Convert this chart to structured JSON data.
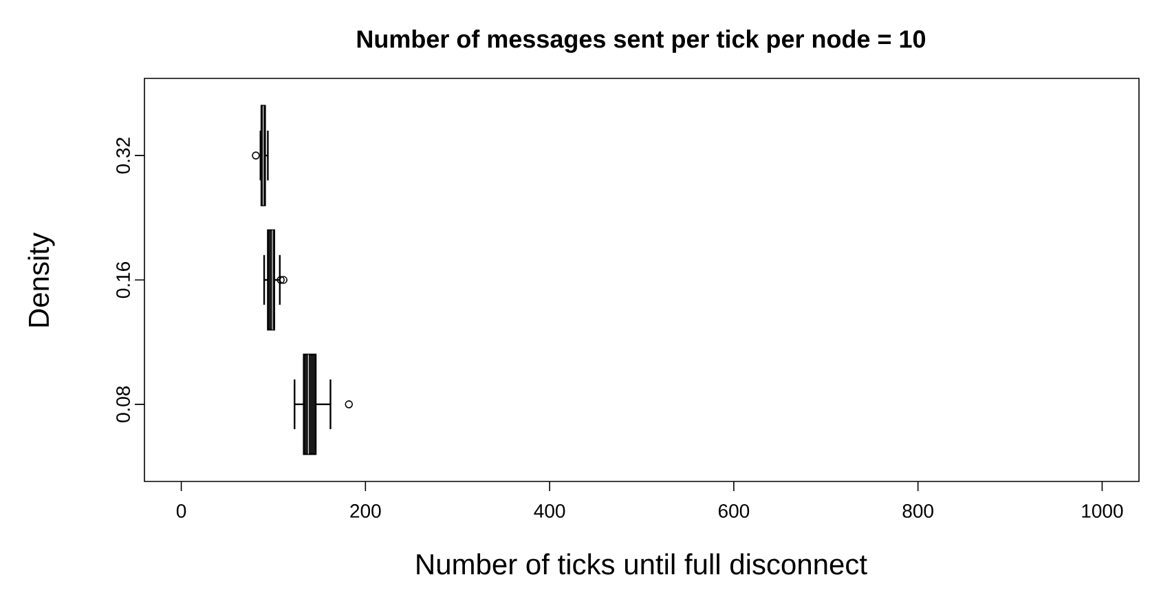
{
  "chart_data": {
    "type": "box",
    "orientation": "horizontal",
    "title": "Number of messages sent per tick per node = 10",
    "xlabel": "Number of ticks until full disconnect",
    "ylabel": "Density",
    "categories": [
      "0.32",
      "0.16",
      "0.08"
    ],
    "color": "#1a1a1a",
    "marker": "circle",
    "boxes": [
      {
        "low": 86,
        "q1": 87,
        "median": 89,
        "q3": 91,
        "high": 94,
        "outliers": [
          81
        ]
      },
      {
        "low": 90,
        "q1": 94,
        "median": 99,
        "q3": 101,
        "high": 107,
        "outliers": [
          108,
          111
        ]
      },
      {
        "low": 123,
        "q1": 133,
        "median": 138,
        "q3": 146,
        "high": 162,
        "outliers": [
          182
        ]
      }
    ],
    "xlim": [
      -40,
      1040
    ],
    "xticks": [
      0,
      200,
      400,
      600,
      800,
      1000
    ]
  }
}
